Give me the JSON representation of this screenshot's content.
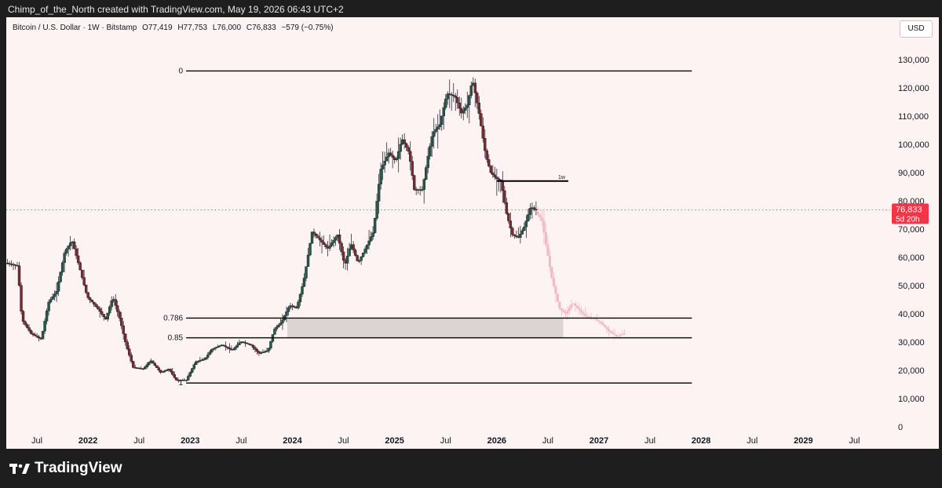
{
  "header": {
    "attribution": "Chimp_of_the_North created with TradingView.com, May 19, 2026 06:43 UTC+2"
  },
  "legend": {
    "symbol": "Bitcoin / U.S. Dollar · 1W · Bitstamp",
    "open": "O77,419",
    "high": "H77,753",
    "low": "L76,000",
    "close": "C76,833",
    "change": "−579 (−0.75%)"
  },
  "currency_label": "USD",
  "price_tag": {
    "price": "76,833",
    "countdown": "5d 20h"
  },
  "footer": {
    "brand": "TradingView"
  },
  "colors": {
    "up": "#26584a",
    "down": "#7a2a33",
    "projection": "#f2b8c4",
    "zone": "#dcd4d2",
    "tag": "#f23645"
  },
  "chart_data": {
    "type": "candlestick",
    "title": "Bitcoin / U.S. Dollar · 1W · Bitstamp",
    "ylim": [
      0,
      132000
    ],
    "y_ticks": [
      "130,000",
      "120,000",
      "110,000",
      "100,000",
      "90,000",
      "80,000",
      "70,000",
      "60,000",
      "50,000",
      "40,000",
      "30,000",
      "20,000",
      "10,000",
      "0"
    ],
    "x_ticks": [
      {
        "label": "Jul",
        "bold": false
      },
      {
        "label": "2022",
        "bold": true
      },
      {
        "label": "Jul",
        "bold": false
      },
      {
        "label": "2023",
        "bold": true
      },
      {
        "label": "Jul",
        "bold": false
      },
      {
        "label": "2024",
        "bold": true
      },
      {
        "label": "Jul",
        "bold": false
      },
      {
        "label": "2025",
        "bold": true
      },
      {
        "label": "Jul",
        "bold": false
      },
      {
        "label": "2026",
        "bold": true
      },
      {
        "label": "Jul",
        "bold": false
      },
      {
        "label": "2027",
        "bold": true
      },
      {
        "label": "Jul",
        "bold": false
      },
      {
        "label": "2028",
        "bold": true
      },
      {
        "label": "Jul",
        "bold": false
      },
      {
        "label": "2029",
        "bold": true
      },
      {
        "label": "Jul",
        "bold": false
      }
    ],
    "x_tick_years": [
      2021.5,
      2022,
      2022.5,
      2023,
      2023.5,
      2024,
      2024.5,
      2025,
      2025.5,
      2026,
      2026.5,
      2027,
      2027.5,
      2028,
      2028.5,
      2029,
      2029.5
    ],
    "x_range": [
      2021.2,
      2029.85
    ],
    "price_path": [
      [
        2021.2,
        58000
      ],
      [
        2021.32,
        57000
      ],
      [
        2021.36,
        38000
      ],
      [
        2021.45,
        33000
      ],
      [
        2021.55,
        31000
      ],
      [
        2021.62,
        44000
      ],
      [
        2021.7,
        48000
      ],
      [
        2021.78,
        62000
      ],
      [
        2021.85,
        66000
      ],
      [
        2021.92,
        57000
      ],
      [
        2022.0,
        46000
      ],
      [
        2022.1,
        42000
      ],
      [
        2022.18,
        38000
      ],
      [
        2022.25,
        46000
      ],
      [
        2022.32,
        38000
      ],
      [
        2022.38,
        29000
      ],
      [
        2022.45,
        21000
      ],
      [
        2022.55,
        20500
      ],
      [
        2022.62,
        23500
      ],
      [
        2022.72,
        19200
      ],
      [
        2022.8,
        20500
      ],
      [
        2022.87,
        16500
      ],
      [
        2022.97,
        16600
      ],
      [
        2023.06,
        23000
      ],
      [
        2023.15,
        24000
      ],
      [
        2023.22,
        27500
      ],
      [
        2023.32,
        29000
      ],
      [
        2023.42,
        27000
      ],
      [
        2023.5,
        30200
      ],
      [
        2023.6,
        29000
      ],
      [
        2023.68,
        26000
      ],
      [
        2023.77,
        27000
      ],
      [
        2023.83,
        34500
      ],
      [
        2023.9,
        37000
      ],
      [
        2023.98,
        43000
      ],
      [
        2024.05,
        42000
      ],
      [
        2024.12,
        52000
      ],
      [
        2024.2,
        69000
      ],
      [
        2024.28,
        66000
      ],
      [
        2024.35,
        63000
      ],
      [
        2024.45,
        68000
      ],
      [
        2024.52,
        57000
      ],
      [
        2024.58,
        65000
      ],
      [
        2024.65,
        58000
      ],
      [
        2024.72,
        63000
      ],
      [
        2024.8,
        69000
      ],
      [
        2024.87,
        91000
      ],
      [
        2024.95,
        97000
      ],
      [
        2025.02,
        94000
      ],
      [
        2025.08,
        102000
      ],
      [
        2025.15,
        97000
      ],
      [
        2025.2,
        84000
      ],
      [
        2025.28,
        84000
      ],
      [
        2025.33,
        95000
      ],
      [
        2025.38,
        104000
      ],
      [
        2025.45,
        107000
      ],
      [
        2025.52,
        118000
      ],
      [
        2025.6,
        117000
      ],
      [
        2025.66,
        111000
      ],
      [
        2025.72,
        114000
      ],
      [
        2025.77,
        123000
      ],
      [
        2025.83,
        112000
      ],
      [
        2025.9,
        96000
      ],
      [
        2025.95,
        90000
      ],
      [
        2026.0,
        88000
      ],
      [
        2026.05,
        87000
      ],
      [
        2026.1,
        76000
      ],
      [
        2026.16,
        68000
      ],
      [
        2026.22,
        67000
      ],
      [
        2026.28,
        71000
      ],
      [
        2026.34,
        78000
      ],
      [
        2026.38,
        76833
      ]
    ],
    "projection_path": [
      [
        2026.38,
        76833
      ],
      [
        2026.45,
        73000
      ],
      [
        2026.5,
        62000
      ],
      [
        2026.55,
        52000
      ],
      [
        2026.62,
        42000
      ],
      [
        2026.68,
        40000
      ],
      [
        2026.75,
        44000
      ],
      [
        2026.82,
        41000
      ],
      [
        2026.88,
        39000
      ],
      [
        2026.95,
        38500
      ],
      [
        2027.02,
        37000
      ],
      [
        2027.1,
        34000
      ],
      [
        2027.18,
        32000
      ],
      [
        2027.25,
        33000
      ]
    ],
    "projection_start_year": 2026.0,
    "fib_levels": [
      {
        "label": "0",
        "price": 126000,
        "x_start": 2022.96,
        "x_end": 2026.68
      },
      {
        "label": "0.786",
        "price": 38500,
        "x_start": 2022.96,
        "x_end": 2026.68
      },
      {
        "label": "0.85",
        "price": 31500,
        "x_start": 2022.96,
        "x_end": 2026.68
      },
      {
        "label": "1",
        "price": 15500,
        "x_start": 2022.96,
        "x_end": 2026.68
      }
    ],
    "zone": {
      "x_start": 2023.95,
      "x_end": 2026.65,
      "price_top": 38500,
      "price_bottom": 31500
    },
    "level_1w": {
      "label": "1w",
      "price": 87000,
      "x_start": 2026.0,
      "x_end": 2026.7
    },
    "current_price": 76833
  }
}
